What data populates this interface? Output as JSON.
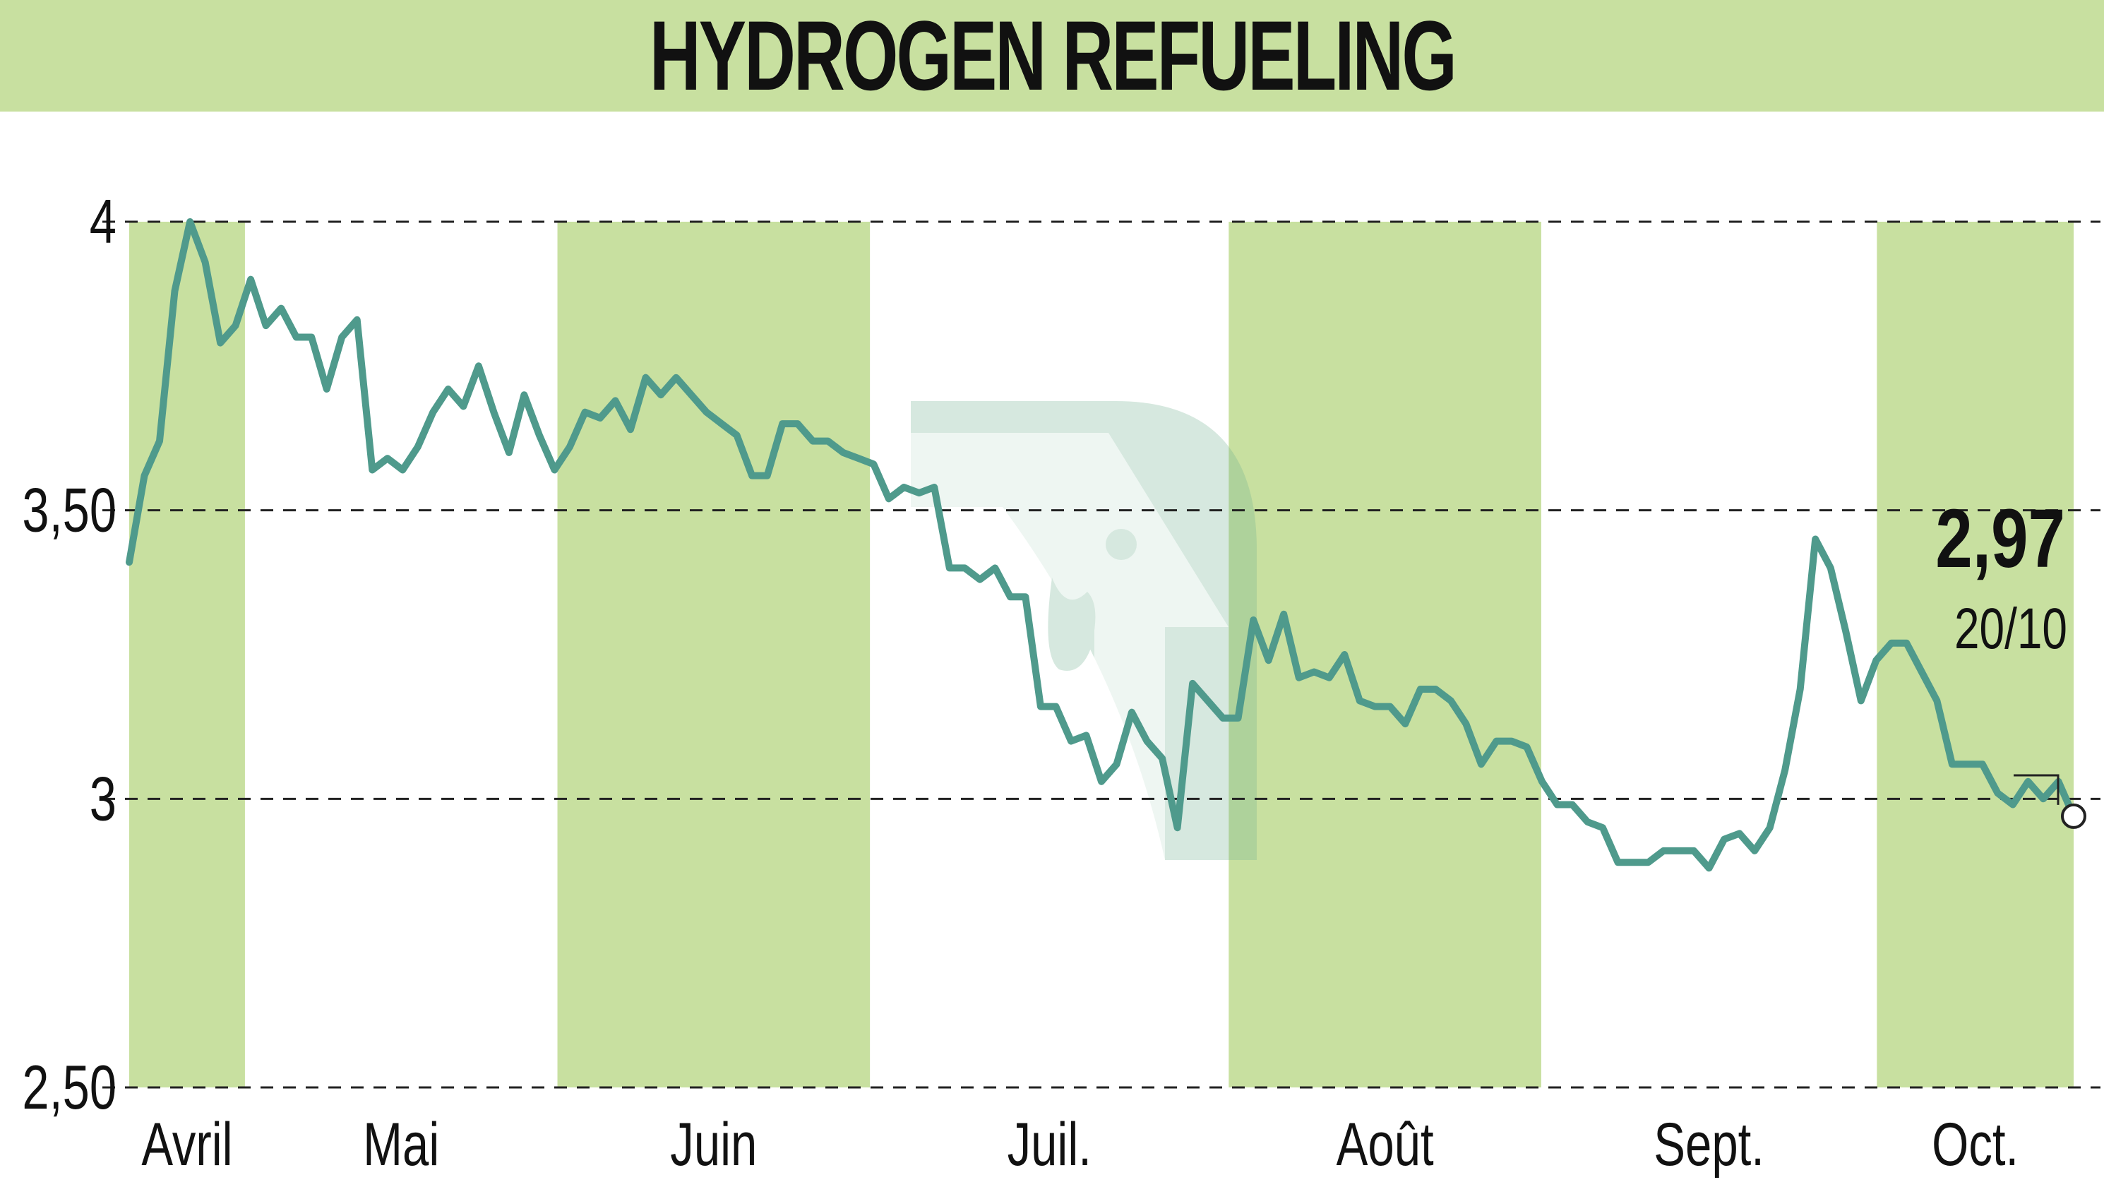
{
  "colors": {
    "title_bg": "#c8e0a0",
    "band": "#c8e0a0",
    "line": "#4f9a8c",
    "grid": "#222222",
    "text": "#111111"
  },
  "chart_data": {
    "type": "line",
    "title": "HYDROGEN REFUELING",
    "xlabel": "",
    "ylabel": "",
    "ylim": [
      2.5,
      4.0
    ],
    "yticks": [
      {
        "value": 4.0,
        "label": "4"
      },
      {
        "value": 3.5,
        "label": "3,50"
      },
      {
        "value": 3.0,
        "label": "3"
      },
      {
        "value": 2.5,
        "label": "2,50"
      }
    ],
    "grid": "horizontal dashed",
    "x_range": [
      0,
      168
    ],
    "months": [
      {
        "label": "Avril",
        "start": 0,
        "end": 10,
        "shaded": true
      },
      {
        "label": "Mai",
        "start": 10,
        "end": 37,
        "shaded": false
      },
      {
        "label": "Juin",
        "start": 37,
        "end": 64,
        "shaded": true
      },
      {
        "label": "Juil.",
        "start": 64,
        "end": 95,
        "shaded": false
      },
      {
        "label": "Août",
        "start": 95,
        "end": 122,
        "shaded": true
      },
      {
        "label": "Sept.",
        "start": 122,
        "end": 151,
        "shaded": false
      },
      {
        "label": "Oct.",
        "start": 151,
        "end": 168,
        "shaded": true
      }
    ],
    "series": [
      {
        "name": "",
        "values": [
          3.41,
          3.56,
          3.62,
          3.88,
          4.0,
          3.93,
          3.79,
          3.82,
          3.9,
          3.82,
          3.85,
          3.8,
          3.8,
          3.71,
          3.8,
          3.83,
          3.57,
          3.59,
          3.57,
          3.61,
          3.67,
          3.71,
          3.68,
          3.75,
          3.67,
          3.6,
          3.7,
          3.63,
          3.57,
          3.61,
          3.67,
          3.66,
          3.69,
          3.64,
          3.73,
          3.7,
          3.73,
          3.7,
          3.67,
          3.65,
          3.63,
          3.56,
          3.56,
          3.65,
          3.65,
          3.62,
          3.62,
          3.6,
          3.59,
          3.58,
          3.52,
          3.54,
          3.53,
          3.54,
          3.4,
          3.4,
          3.38,
          3.4,
          3.35,
          3.35,
          3.16,
          3.16,
          3.1,
          3.11,
          3.03,
          3.06,
          3.15,
          3.1,
          3.07,
          2.95,
          3.2,
          3.17,
          3.14,
          3.14,
          3.31,
          3.24,
          3.32,
          3.21,
          3.22,
          3.21,
          3.25,
          3.17,
          3.16,
          3.16,
          3.13,
          3.19,
          3.19,
          3.17,
          3.13,
          3.06,
          3.1,
          3.1,
          3.09,
          3.03,
          2.99,
          2.99,
          2.96,
          2.95,
          2.89,
          2.89,
          2.89,
          2.91,
          2.91,
          2.91,
          2.88,
          2.93,
          2.94,
          2.91,
          2.95,
          3.05,
          3.19,
          3.45,
          3.4,
          3.29,
          3.17,
          3.24,
          3.27,
          3.27,
          3.22,
          3.17,
          3.06,
          3.06,
          3.06,
          3.01,
          2.99,
          3.03,
          3.0,
          3.03,
          2.97
        ],
        "x_end": 168
      }
    ],
    "last": {
      "value_label": "2,97",
      "date_label": "20/10"
    }
  }
}
